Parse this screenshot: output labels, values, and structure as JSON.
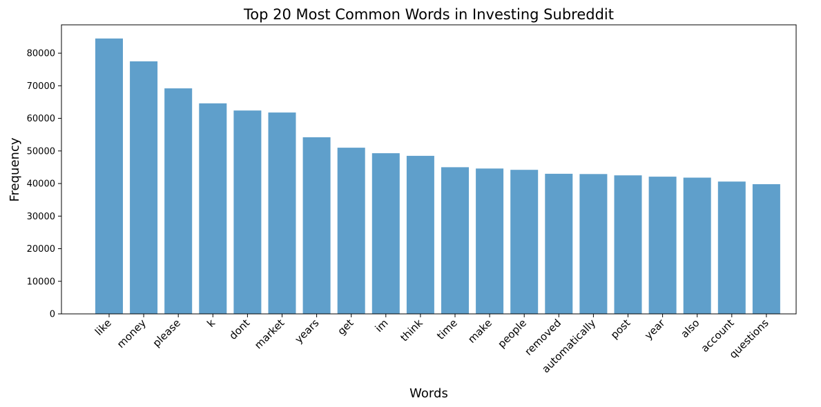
{
  "chart_data": {
    "type": "bar",
    "title": "Top 20 Most Common Words in Investing Subreddit",
    "xlabel": "Words",
    "ylabel": "Frequency",
    "categories": [
      "like",
      "money",
      "please",
      "k",
      "dont",
      "market",
      "years",
      "get",
      "im",
      "think",
      "time",
      "make",
      "people",
      "removed",
      "automatically",
      "post",
      "year",
      "also",
      "account",
      "questions"
    ],
    "values": [
      84500,
      77500,
      69200,
      64600,
      62400,
      61800,
      54200,
      51000,
      49300,
      48500,
      45000,
      44600,
      44200,
      43000,
      42900,
      42500,
      42100,
      41800,
      40600,
      39800
    ],
    "ylim": [
      0,
      88700
    ],
    "yticks": [
      0,
      10000,
      20000,
      30000,
      40000,
      50000,
      60000,
      70000,
      80000
    ],
    "bar_color": "#5f9fcb",
    "grid": false,
    "legend": false
  }
}
